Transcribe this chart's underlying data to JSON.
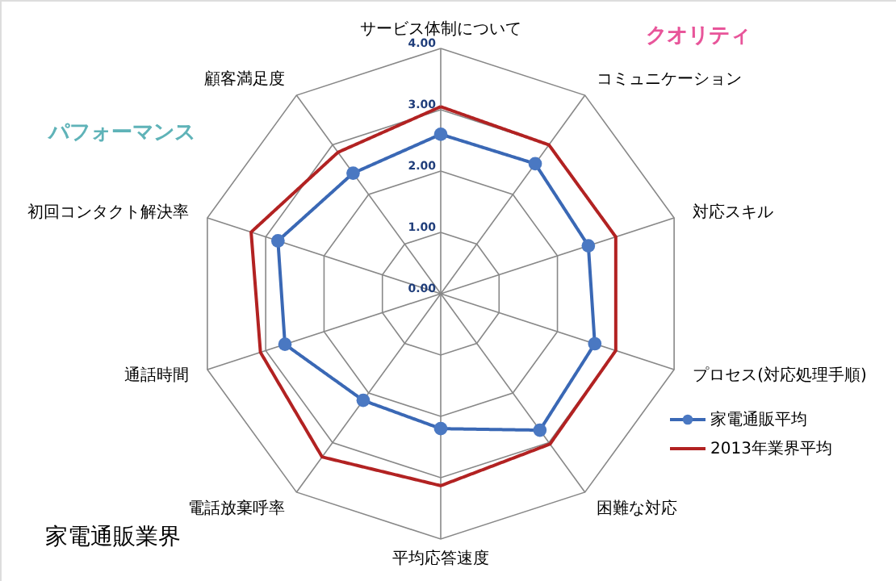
{
  "chart_data": {
    "type": "radar",
    "title": "家電通販業界",
    "categories": [
      "サービス体制について",
      "コミュニケーション",
      "対応スキル",
      "プロセス(対応処理手順)",
      "困難な対応",
      "平均応答速度",
      "電話放棄呼率",
      "通話時間",
      "初回コンタクト解決率",
      "顧客満足度"
    ],
    "series": [
      {
        "name": "家電通販平均",
        "color": "#3a68b5",
        "marker": "circle",
        "values": [
          2.6,
          2.62,
          2.53,
          2.64,
          2.75,
          2.2,
          2.15,
          2.67,
          2.79,
          2.43
        ]
      },
      {
        "name": "2013年業界平均",
        "color": "#b22222",
        "marker": "none",
        "values": [
          3.05,
          3.0,
          3.0,
          3.0,
          3.03,
          3.13,
          3.29,
          3.09,
          3.25,
          2.85
        ]
      }
    ],
    "ylim": [
      0,
      4
    ],
    "yticks": [
      {
        "value": 0,
        "label": "0.00"
      },
      {
        "value": 1,
        "label": "1.00"
      },
      {
        "value": 2,
        "label": "2.00"
      },
      {
        "value": 3,
        "label": "3.00"
      },
      {
        "value": 4,
        "label": "4.00"
      }
    ],
    "grid": true,
    "legend": "bottom right",
    "line_style": "solid",
    "annotations": [
      "クオリティ",
      "パフォーマンス"
    ]
  }
}
